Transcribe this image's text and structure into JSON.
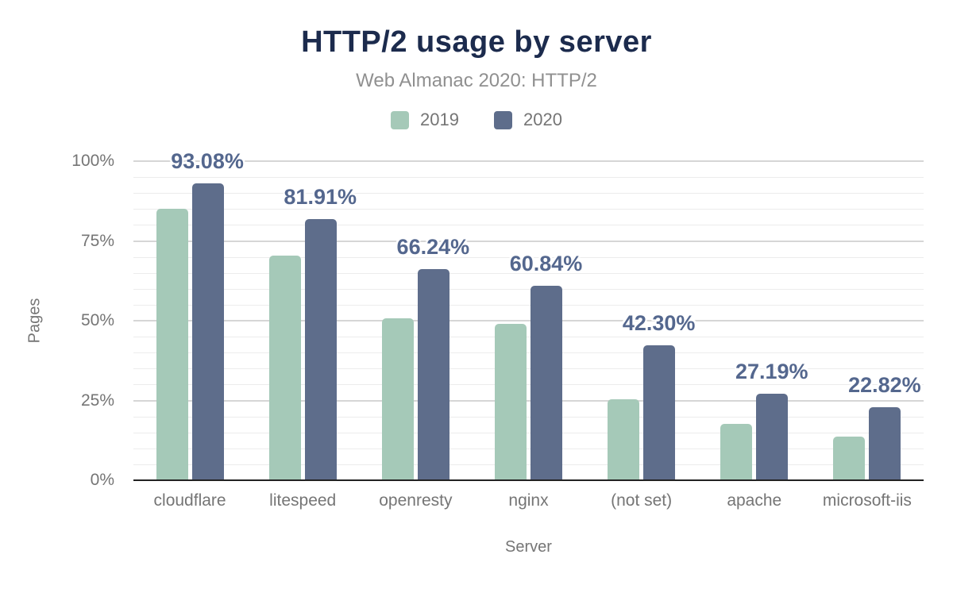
{
  "chart_data": {
    "type": "bar",
    "title": "HTTP/2 usage by server",
    "subtitle": "Web Almanac 2020: HTTP/2",
    "xlabel": "Server",
    "ylabel": "Pages",
    "categories": [
      "cloudflare",
      "litespeed",
      "openresty",
      "nginx",
      "(not set)",
      "apache",
      "microsoft-iis"
    ],
    "series": [
      {
        "name": "2019",
        "color": "#a5c9b8",
        "values": [
          85.1,
          70.4,
          50.7,
          48.9,
          25.4,
          17.7,
          13.8
        ]
      },
      {
        "name": "2020",
        "color": "#5e6d8b",
        "values": [
          93.08,
          81.91,
          66.24,
          60.84,
          42.3,
          27.19,
          22.82
        ],
        "data_labels": [
          "93.08%",
          "81.91%",
          "66.24%",
          "60.84%",
          "42.30%",
          "27.19%",
          "22.82%"
        ]
      }
    ],
    "ylim": [
      0,
      100
    ],
    "yticks": [
      {
        "value": 0,
        "label": "0%"
      },
      {
        "value": 25,
        "label": "25%"
      },
      {
        "value": 50,
        "label": "50%"
      },
      {
        "value": 75,
        "label": "75%"
      },
      {
        "value": 100,
        "label": "100%"
      }
    ],
    "grid": {
      "minor_step": 5,
      "major_step": 25,
      "on": true
    },
    "legend_position": "top",
    "colors": {
      "title": "#1c2b4d",
      "subtitle": "#909090",
      "axis_text": "#757575",
      "data_label": "#54678e",
      "axis_line": "#222222",
      "gridline_minor": "#ececec",
      "gridline_major": "#d6d6d6",
      "background": "#ffffff"
    }
  }
}
